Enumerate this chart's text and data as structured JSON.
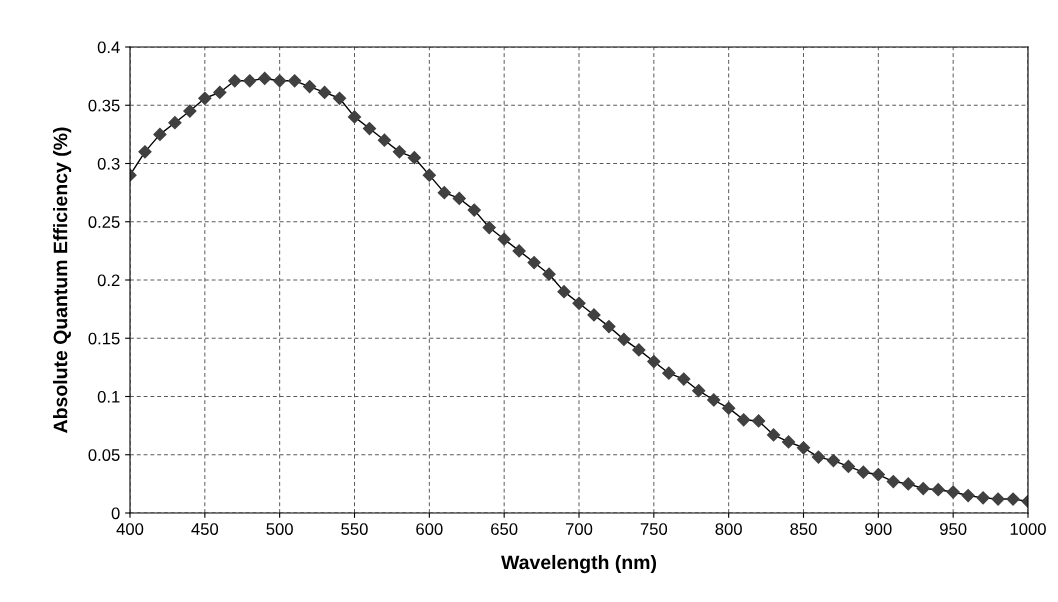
{
  "chart_data": {
    "type": "line",
    "xlabel": "Wavelength (nm)",
    "ylabel": "Absolute Quantum Efficiency (%)",
    "x": [
      400,
      410,
      420,
      430,
      440,
      450,
      460,
      470,
      480,
      490,
      500,
      510,
      520,
      530,
      540,
      550,
      560,
      570,
      580,
      590,
      600,
      610,
      620,
      630,
      640,
      650,
      660,
      670,
      680,
      690,
      700,
      710,
      720,
      730,
      740,
      750,
      760,
      770,
      780,
      790,
      800,
      810,
      820,
      830,
      840,
      850,
      860,
      870,
      880,
      890,
      900,
      910,
      920,
      930,
      940,
      950,
      960,
      970,
      980,
      990,
      1000
    ],
    "series": [
      {
        "color": "#404040",
        "values": [
          0.29,
          0.31,
          0.325,
          0.335,
          0.345,
          0.356,
          0.361,
          0.371,
          0.371,
          0.373,
          0.371,
          0.371,
          0.366,
          0.361,
          0.356,
          0.34,
          0.33,
          0.32,
          0.31,
          0.305,
          0.29,
          0.275,
          0.27,
          0.26,
          0.245,
          0.235,
          0.225,
          0.215,
          0.205,
          0.19,
          0.18,
          0.17,
          0.16,
          0.149,
          0.14,
          0.13,
          0.12,
          0.115,
          0.105,
          0.097,
          0.09,
          0.08,
          0.079,
          0.067,
          0.061,
          0.056,
          0.048,
          0.045,
          0.04,
          0.035,
          0.033,
          0.027,
          0.025,
          0.021,
          0.02,
          0.018,
          0.015,
          0.013,
          0.012,
          0.012,
          0.01
        ]
      }
    ],
    "xlim": [
      400,
      1000
    ],
    "xticks": [
      400,
      450,
      500,
      550,
      600,
      650,
      700,
      750,
      800,
      850,
      900,
      950,
      1000
    ],
    "ylim": [
      0,
      0.4
    ],
    "yticks": [
      0,
      0.05,
      0.1,
      0.15,
      0.2,
      0.25,
      0.3,
      0.35,
      0.4
    ],
    "grid": true,
    "marker": "diamond",
    "line_style": "solid",
    "legend": false
  }
}
